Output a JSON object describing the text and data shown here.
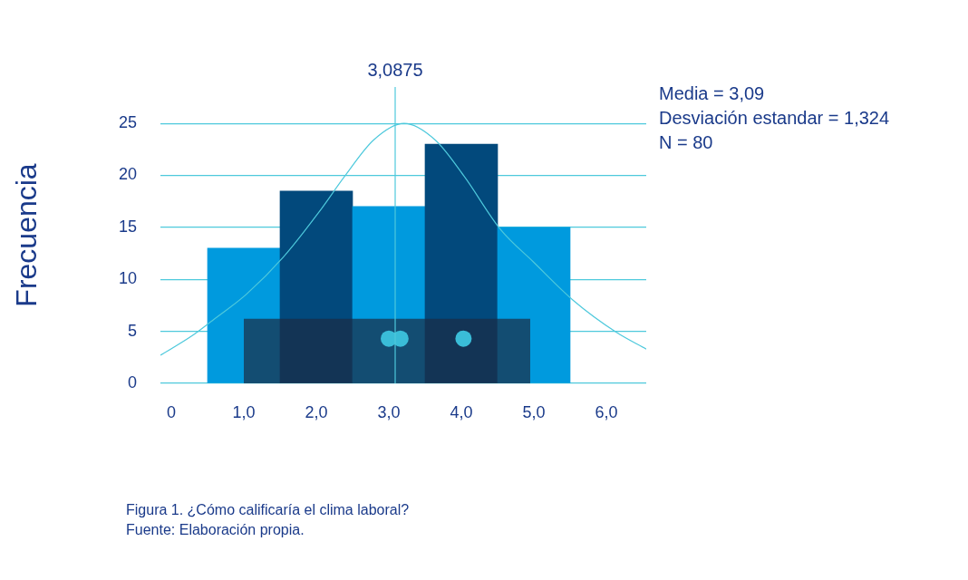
{
  "chart_data": {
    "type": "histogram",
    "ylabel": "Frecuencia",
    "bins": [
      0.5,
      1.5,
      2.5,
      3.5,
      4.5,
      5.5
    ],
    "values": [
      13,
      18.5,
      17,
      23,
      15
    ],
    "colors": [
      "#009ade",
      "#02497c",
      "#009ade",
      "#02497c",
      "#009ade"
    ],
    "series": [
      {
        "type": "area",
        "color": "#1b2c44",
        "x": [
          1.0,
          4.95
        ],
        "values": [
          6.2,
          6.2
        ]
      },
      {
        "type": "scatter",
        "marker": "circle",
        "color": "#3abdd8",
        "x": [
          3.0,
          3.16,
          4.03
        ],
        "values": [
          4.3,
          4.3,
          4.3
        ]
      },
      {
        "type": "line",
        "color": "#4ec9dc",
        "x": [
          -0.15,
          0.29,
          0.54,
          1.04,
          1.54,
          2.04,
          2.39,
          2.79,
          3.21,
          3.64,
          4.04,
          4.54,
          4.99,
          5.54,
          6.14,
          6.55
        ],
        "values": [
          2.7,
          4.6,
          5.9,
          8.6,
          12.1,
          16.5,
          19.9,
          23.4,
          25,
          23.4,
          19.9,
          14.8,
          11.7,
          8.0,
          4.9,
          3.3
        ]
      }
    ],
    "ref_lines": [
      {
        "axis": "x",
        "value": 3.0875,
        "label": "3,0875",
        "color": "#4ec9dc"
      }
    ],
    "xlim": [
      -0.15,
      6.55
    ],
    "xticks": [
      0,
      {
        "value": 1,
        "label": "1,0"
      },
      {
        "value": 2,
        "label": "2,0"
      },
      {
        "value": 3,
        "label": "3,0"
      },
      {
        "value": 4,
        "label": "4,0"
      },
      {
        "value": 5,
        "label": "5,0"
      },
      {
        "value": 6,
        "label": "6,0"
      }
    ],
    "ylim": [
      0,
      28.5
    ],
    "yticks": [
      0,
      5,
      10,
      15,
      20,
      25
    ],
    "grid": "y",
    "legend": false,
    "annotations": [
      "Media = 3,09",
      "Desviación estandar = 1,324",
      "N = 80",
      "Figura 1. ¿Cómo calificaría el clima laboral?",
      "Fuente: Elaboración propia."
    ]
  }
}
